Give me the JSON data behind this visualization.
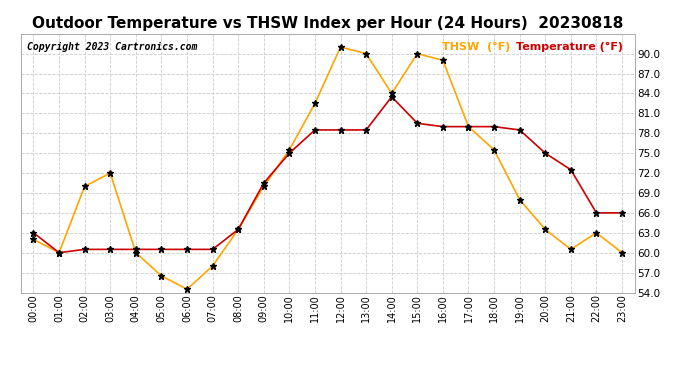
{
  "title": "Outdoor Temperature vs THSW Index per Hour (24 Hours)  20230818",
  "copyright": "Copyright 2023 Cartronics.com",
  "legend_thsw": "THSW  (°F)",
  "legend_temp": "Temperature (°F)",
  "hours": [
    0,
    1,
    2,
    3,
    4,
    5,
    6,
    7,
    8,
    9,
    10,
    11,
    12,
    13,
    14,
    15,
    16,
    17,
    18,
    19,
    20,
    21,
    22,
    23
  ],
  "thsw": [
    62.0,
    60.0,
    70.0,
    72.0,
    60.0,
    56.5,
    54.5,
    58.0,
    63.5,
    70.0,
    75.5,
    82.5,
    91.0,
    90.0,
    84.0,
    90.0,
    89.0,
    79.0,
    75.5,
    68.0,
    63.5,
    60.5,
    63.0,
    60.0
  ],
  "temperature": [
    63.0,
    60.0,
    60.5,
    60.5,
    60.5,
    60.5,
    60.5,
    60.5,
    63.5,
    70.5,
    75.0,
    78.5,
    78.5,
    78.5,
    83.5,
    79.5,
    79.0,
    79.0,
    79.0,
    78.5,
    75.0,
    72.5,
    66.0,
    66.0
  ],
  "thsw_color": "#FFA500",
  "temp_color": "#CC0000",
  "ylim": [
    54.0,
    93.0
  ],
  "yticks": [
    54.0,
    57.0,
    60.0,
    63.0,
    66.0,
    69.0,
    72.0,
    75.0,
    78.0,
    81.0,
    84.0,
    87.0,
    90.0
  ],
  "bg_color": "#ffffff",
  "grid_color": "#cccccc",
  "title_fontsize": 11,
  "copyright_fontsize": 7,
  "legend_fontsize": 8,
  "marker": "*",
  "marker_size": 5,
  "line_width": 1.2
}
